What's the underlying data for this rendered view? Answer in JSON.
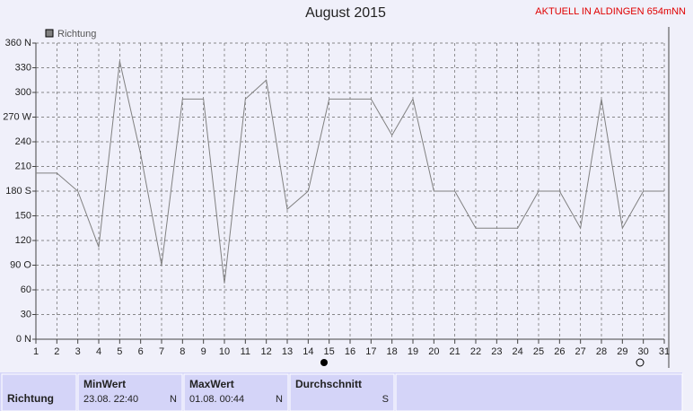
{
  "chart_data": {
    "type": "line",
    "title": "August 2015",
    "subtitle": "AKTUELL IN ALDINGEN 654mNN",
    "x": [
      1,
      2,
      3,
      4,
      5,
      6,
      7,
      8,
      9,
      10,
      11,
      12,
      13,
      14,
      15,
      16,
      17,
      18,
      19,
      20,
      21,
      22,
      23,
      24,
      25,
      26,
      27,
      28,
      29,
      30,
      31
    ],
    "series": [
      {
        "name": "Richtung",
        "color": "#808080",
        "values": [
          202,
          202,
          180,
          112,
          338,
          225,
          90,
          292,
          292,
          68,
          292,
          315,
          158,
          180,
          292,
          292,
          292,
          248,
          292,
          180,
          180,
          135,
          135,
          135,
          180,
          180,
          135,
          292,
          135,
          180,
          180
        ]
      }
    ],
    "xlim": [
      1,
      31
    ],
    "xticks": [
      1,
      2,
      3,
      4,
      5,
      6,
      7,
      8,
      9,
      10,
      11,
      12,
      13,
      14,
      15,
      16,
      17,
      18,
      19,
      20,
      21,
      22,
      23,
      24,
      25,
      26,
      27,
      28,
      29,
      30,
      31
    ],
    "ylim": [
      0,
      360
    ],
    "yticks": [
      {
        "value": 0,
        "label": "0 N"
      },
      30,
      60,
      {
        "value": 90,
        "label": "90 O"
      },
      120,
      150,
      {
        "value": 180,
        "label": "180 S"
      },
      210,
      240,
      {
        "value": 270,
        "label": "270 W"
      },
      300,
      330,
      {
        "value": 360,
        "label": "360 N"
      }
    ],
    "grid": true
  },
  "table": {
    "row_label": "Richtung",
    "columns": [
      {
        "title": "MinWert",
        "time": "23.08.  22:40",
        "dir": "N"
      },
      {
        "title": "MaxWert",
        "time": "01.08.  00:44",
        "dir": "N"
      },
      {
        "title": "Durchschnitt",
        "dir": "S"
      }
    ]
  }
}
